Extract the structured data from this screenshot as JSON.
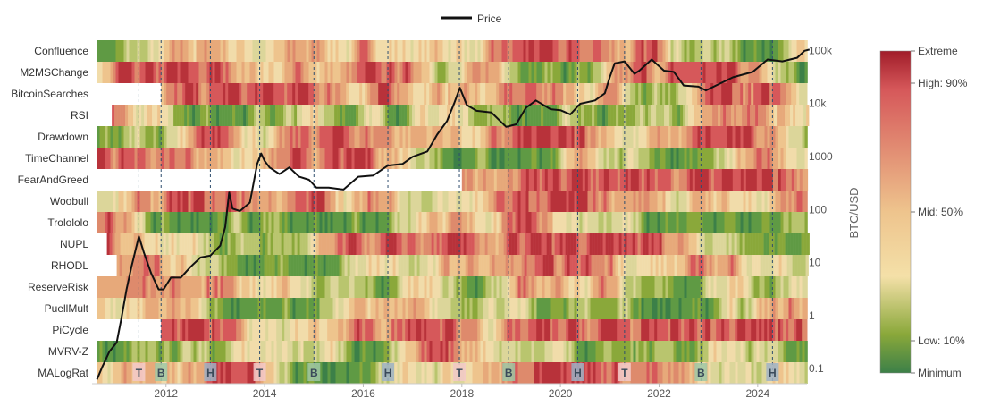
{
  "chart_data": {
    "type": "heatmap",
    "legend": {
      "series_name": "Price",
      "placement": "top"
    },
    "rows": [
      "Confluence",
      "M2MSChange",
      "BitcoinSearches",
      "RSI",
      "Drawdown",
      "TimeChannel",
      "FearAndGreed",
      "Woobull",
      "Trolololo",
      "NUPL",
      "RHODL",
      "ReserveRisk",
      "PuellMult",
      "PiCycle",
      "MVRV-Z",
      "MALogRat"
    ],
    "row_start_years": [
      2010.6,
      2010.6,
      2011.9,
      2010.9,
      2010.6,
      2010.6,
      2018.0,
      2010.6,
      2010.6,
      2010.8,
      2011.0,
      2010.6,
      2010.6,
      2011.9,
      2010.6,
      2010.6
    ],
    "x_axis": {
      "ticks": [
        2012,
        2014,
        2016,
        2018,
        2020,
        2022,
        2024
      ],
      "range": [
        2010.5,
        2025.0
      ]
    },
    "y_axis": {
      "label": "BTC/USD",
      "scale": "log",
      "ticks": [
        "0.1",
        "1",
        "10",
        "100",
        "1000",
        "10k",
        "100k"
      ],
      "range": [
        0.05,
        150000
      ]
    },
    "colorbar": {
      "labels": [
        "Extreme",
        "High: 90%",
        "Mid: 50%",
        "Low: 10%",
        "Minimum"
      ],
      "colors": [
        "#a11d2a",
        "#d6585a",
        "#eec48d",
        "#f4e0a8",
        "#8aa83a",
        "#3c8048"
      ]
    },
    "cycle_markers": [
      {
        "label": "T",
        "year": 2011.45
      },
      {
        "label": "B",
        "year": 2011.9
      },
      {
        "label": "H",
        "year": 2012.9
      },
      {
        "label": "T",
        "year": 2013.9
      },
      {
        "label": "B",
        "year": 2015.0
      },
      {
        "label": "H",
        "year": 2016.5
      },
      {
        "label": "T",
        "year": 2017.95
      },
      {
        "label": "B",
        "year": 2018.95
      },
      {
        "label": "H",
        "year": 2020.35
      },
      {
        "label": "T",
        "year": 2021.3
      },
      {
        "label": "B",
        "year": 2022.85
      },
      {
        "label": "H",
        "year": 2024.3
      }
    ],
    "price_series": {
      "name": "Price",
      "x": [
        2010.6,
        2010.7,
        2010.85,
        2011.0,
        2011.1,
        2011.2,
        2011.3,
        2011.45,
        2011.55,
        2011.7,
        2011.85,
        2011.95,
        2012.1,
        2012.3,
        2012.5,
        2012.7,
        2012.9,
        2013.1,
        2013.2,
        2013.28,
        2013.35,
        2013.5,
        2013.7,
        2013.85,
        2013.93,
        2014.0,
        2014.1,
        2014.3,
        2014.5,
        2014.7,
        2014.9,
        2015.05,
        2015.3,
        2015.6,
        2015.9,
        2016.2,
        2016.5,
        2016.8,
        2017.0,
        2017.3,
        2017.5,
        2017.7,
        2017.85,
        2017.96,
        2018.1,
        2018.3,
        2018.6,
        2018.9,
        2018.96,
        2019.1,
        2019.3,
        2019.5,
        2019.8,
        2020.0,
        2020.2,
        2020.4,
        2020.7,
        2020.9,
        2021.0,
        2021.1,
        2021.3,
        2021.5,
        2021.6,
        2021.85,
        2022.1,
        2022.3,
        2022.5,
        2022.8,
        2022.95,
        2023.2,
        2023.5,
        2023.9,
        2024.2,
        2024.5,
        2024.8,
        2024.95,
        2025.05
      ],
      "y": [
        0.06,
        0.1,
        0.2,
        0.3,
        0.9,
        3,
        8,
        30,
        15,
        6,
        3,
        3,
        5,
        5,
        8,
        12,
        13,
        20,
        45,
        200,
        100,
        90,
        130,
        700,
        1100,
        800,
        600,
        450,
        600,
        400,
        350,
        250,
        250,
        230,
        400,
        420,
        650,
        700,
        950,
        1200,
        2500,
        4500,
        10000,
        19000,
        9000,
        7000,
        6500,
        3500,
        3600,
        3900,
        8000,
        11000,
        7500,
        7200,
        6000,
        9500,
        11000,
        15000,
        30000,
        55000,
        60000,
        35000,
        40000,
        65000,
        40000,
        38000,
        21000,
        20000,
        17000,
        22000,
        30000,
        38000,
        65000,
        60000,
        70000,
        95000,
        100000
      ]
    }
  }
}
